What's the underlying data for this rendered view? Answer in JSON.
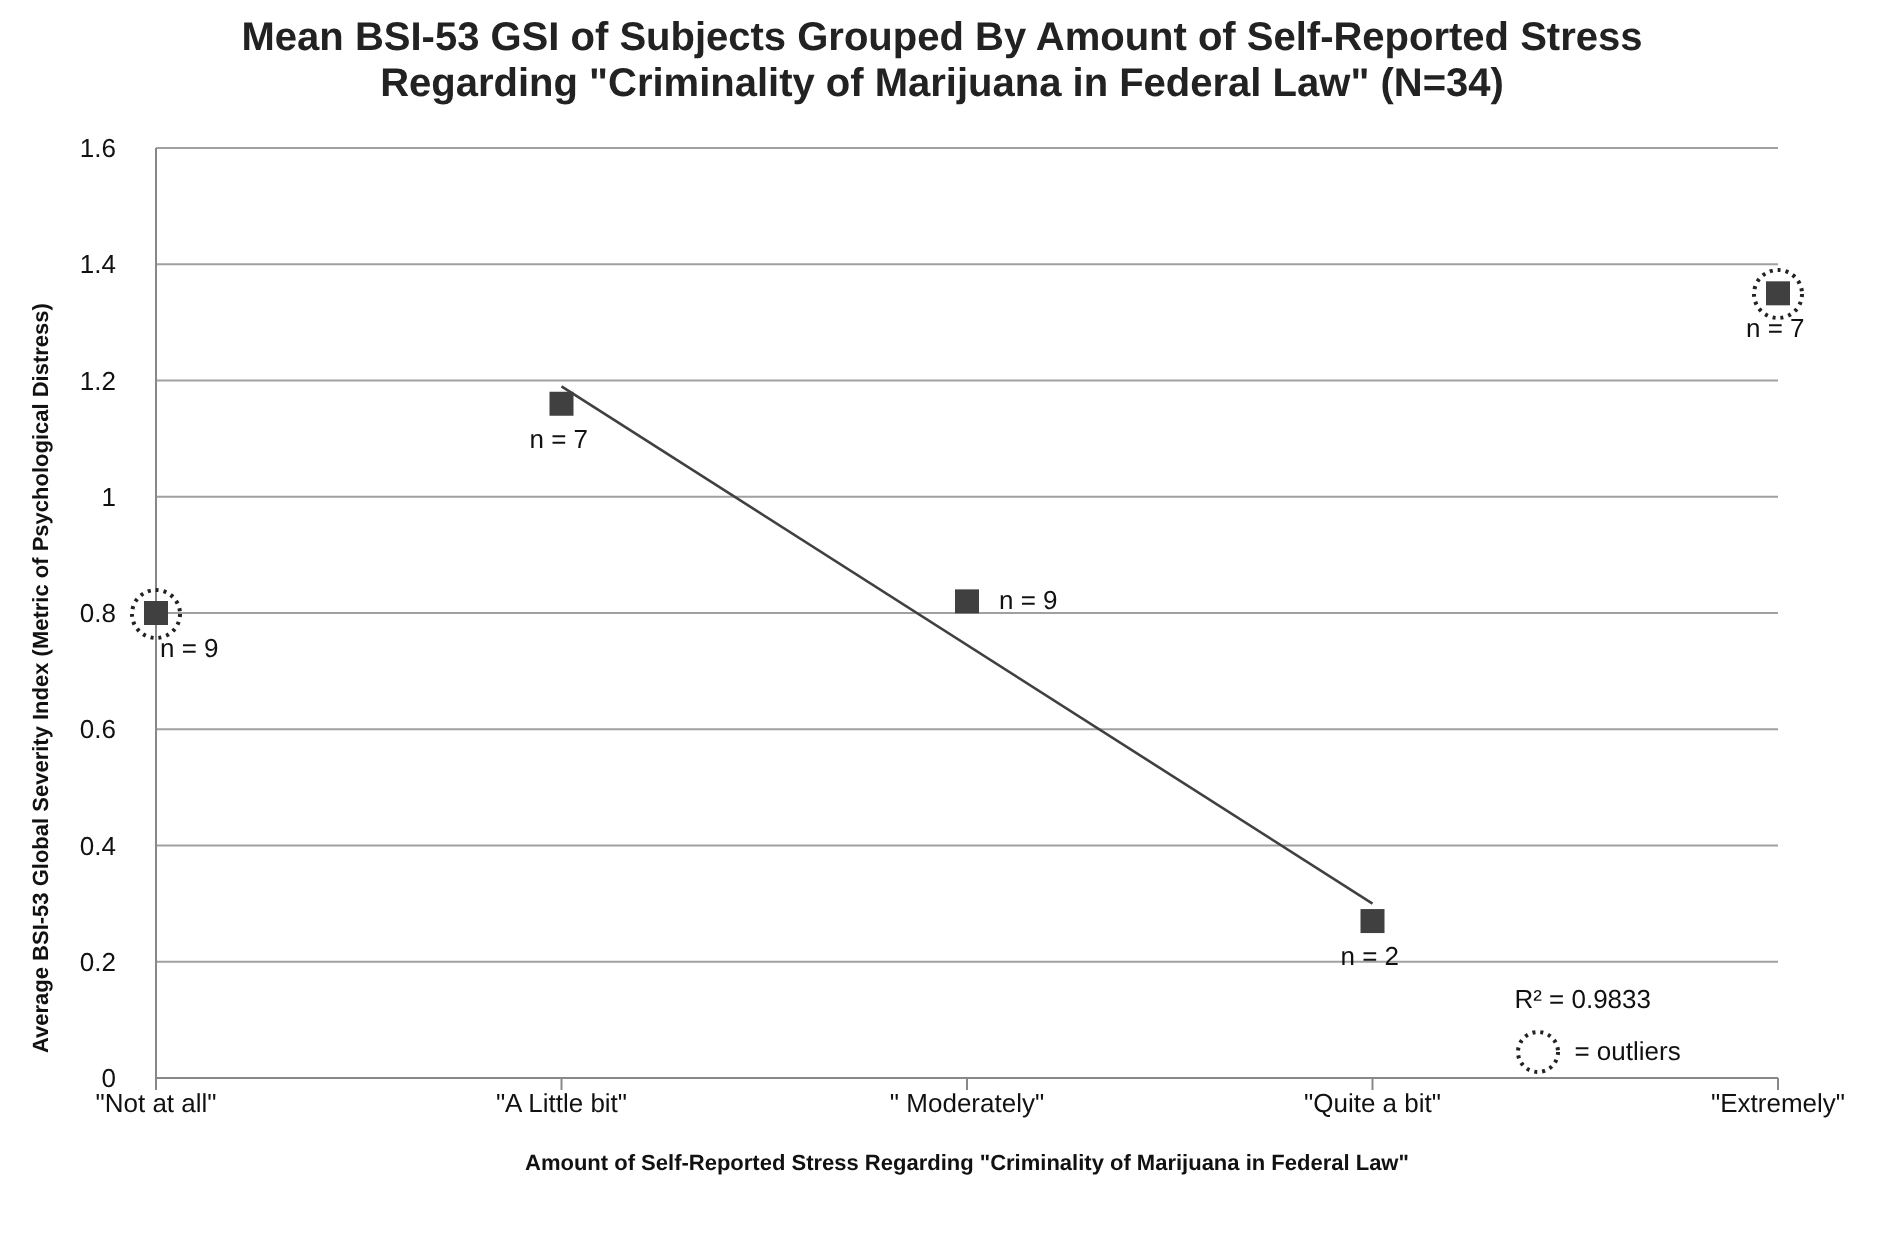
{
  "chart_data": {
    "type": "scatter",
    "title": "Mean BSI-53 GSI of Subjects Grouped By Amount of Self-Reported Stress Regarding \"Criminality of Marijuana in Federal Law\" (N=34)",
    "xlabel": "Amount of Self-Reported Stress Regarding \"Criminality of Marijuana in Federal Law\"",
    "ylabel": "Average BSI-53 Global Severity Index (Metric of Psychological Distress)",
    "categories": [
      "\"Not at all\"",
      "\"A Little bit\"",
      "\" Moderately\"",
      "\"Quite a bit\"",
      "\"Extremely\""
    ],
    "series": [
      {
        "color": "#404040",
        "marker": "square",
        "values": [
          0.8,
          1.16,
          0.82,
          0.27,
          1.35
        ]
      },
      {
        "type": "line",
        "color": "#404040",
        "x": [
          "\"A Little bit\"",
          "\"Quite a bit\""
        ],
        "values": [
          1.19,
          0.3
        ]
      }
    ],
    "ylim": [
      0,
      1.6
    ],
    "yticks": [
      0,
      0.2,
      0.4,
      0.6,
      0.8,
      1,
      1.2,
      1.4,
      1.6
    ],
    "grid": "y",
    "legend": false,
    "annotations": [
      {
        "text": "n = 9",
        "x": "\"Not at all\"",
        "y": 0.8
      },
      {
        "text": "n = 7",
        "x": "\"A Little bit\"",
        "y": 1.16
      },
      {
        "text": "n = 9",
        "x": "\" Moderately\"",
        "y": 0.82
      },
      {
        "text": "n = 2",
        "x": "\"Quite a bit\"",
        "y": 0.27
      },
      {
        "text": "n = 7",
        "x": "\"Extremely\"",
        "y": 1.35
      },
      "R² = 0.9833",
      "= outliers"
    ]
  }
}
